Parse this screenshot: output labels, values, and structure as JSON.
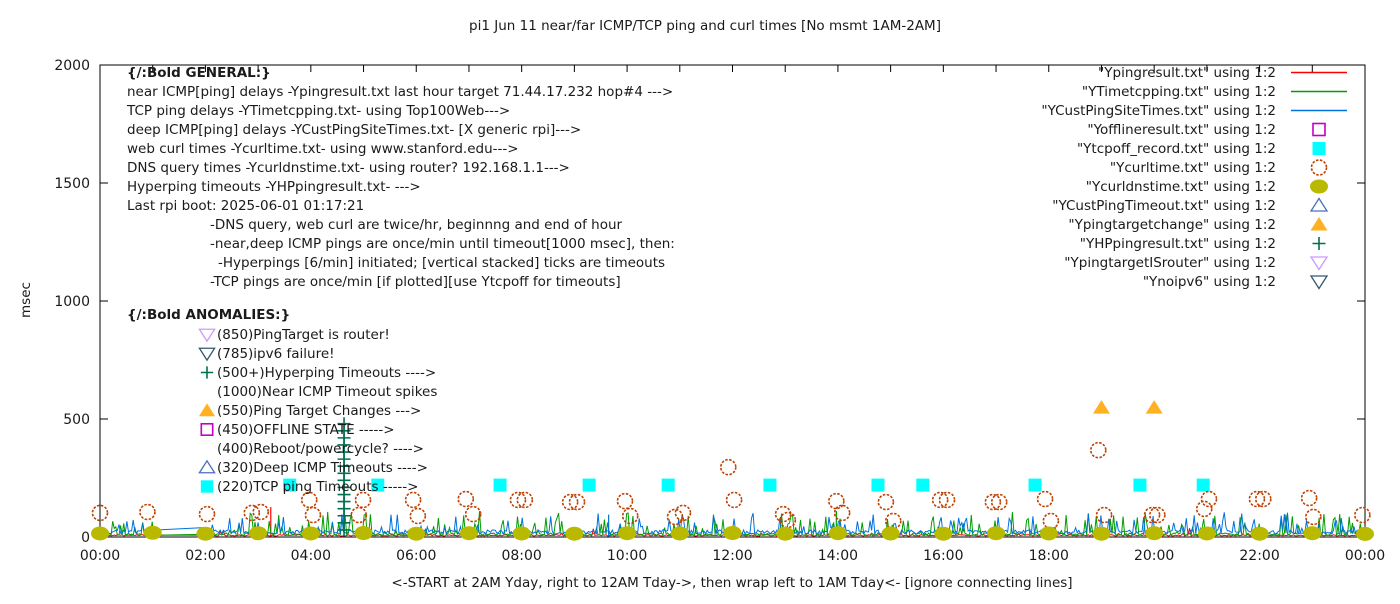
{
  "chart_data": {
    "type": "mixed",
    "title": "pi1 Jun 11  near/far ICMP/TCP ping and curl times [No msmt 1AM-2AM]",
    "xlabel": "<-START at 2AM Yday, right to 12AM Tday->, then wrap left to 1AM Tday<- [ignore connecting lines]",
    "ylabel": "msec",
    "xlim_hours": [
      0,
      24
    ],
    "ylim": [
      0,
      2000
    ],
    "y_ticks": [
      0,
      500,
      1000,
      1500,
      2000
    ],
    "x_ticks": [
      {
        "hour": 0,
        "label": "00:00"
      },
      {
        "hour": 2,
        "label": "02:00"
      },
      {
        "hour": 4,
        "label": "04:00"
      },
      {
        "hour": 6,
        "label": "06:00"
      },
      {
        "hour": 8,
        "label": "08:00"
      },
      {
        "hour": 10,
        "label": "10:00"
      },
      {
        "hour": 12,
        "label": "12:00"
      },
      {
        "hour": 14,
        "label": "14:00"
      },
      {
        "hour": 16,
        "label": "16:00"
      },
      {
        "hour": 18,
        "label": "18:00"
      },
      {
        "hour": 20,
        "label": "20:00"
      },
      {
        "hour": 22,
        "label": "22:00"
      },
      {
        "hour": 24,
        "label": "00:00"
      }
    ],
    "measurement_gap_hours": [
      1.0,
      2.0
    ],
    "grid": false,
    "legend_position": "top-right-inside",
    "series": [
      {
        "legend_label": "\"Ypingresult.txt\" using 1:2",
        "type": "noise-line",
        "color": "#ff0000",
        "baseline_msec": 4,
        "noise_amp_msec": 6,
        "spike_chance": 0.02,
        "spike_max_msec": 35,
        "seed": 11,
        "extra_spikes": [
          {
            "hour": 3.24,
            "msec": 127
          }
        ]
      },
      {
        "legend_label": "\"YTimetcpping.txt\" using 1:2",
        "type": "noise-line",
        "color": "#009e00",
        "baseline_msec": 7,
        "noise_amp_msec": 10,
        "spike_chance": 0.2,
        "spike_max_msec": 95,
        "seed": 22,
        "extra_spikes": [
          {
            "hour": 13.97,
            "msec": 110
          }
        ]
      },
      {
        "legend_label": "\"YCustPingSiteTimes.txt\" using 1:2",
        "type": "noise-line",
        "color": "#0072dd",
        "baseline_msec": 12,
        "noise_amp_msec": 18,
        "spike_chance": 0.2,
        "spike_max_msec": 75,
        "seed": 33,
        "extra_spikes": [
          {
            "hour": 9.65,
            "msec": 95
          }
        ]
      },
      {
        "legend_label": "\"Yofflineresult.txt\" using 1:2",
        "type": "scatter",
        "marker": "open-square",
        "color": "#c400c4",
        "points": []
      },
      {
        "legend_label": "\"Ytcpoff_record.txt\" using 1:2",
        "type": "scatter",
        "marker": "filled-square",
        "color": "#00ffff",
        "points": [
          [
            3.6,
            220
          ],
          [
            5.27,
            220
          ],
          [
            7.59,
            220
          ],
          [
            9.28,
            220
          ],
          [
            10.78,
            220
          ],
          [
            12.71,
            220
          ],
          [
            14.76,
            220
          ],
          [
            15.61,
            220
          ],
          [
            17.74,
            220
          ],
          [
            19.73,
            220
          ],
          [
            20.93,
            220
          ]
        ]
      },
      {
        "legend_label": "\"Ycurltime.txt\" using 1:2",
        "type": "scatter",
        "marker": "open-circle",
        "color": "#c04000",
        "points": [
          [
            0.0,
            102
          ],
          [
            0.9,
            106
          ],
          [
            2.03,
            97
          ],
          [
            2.88,
            102
          ],
          [
            3.05,
            106
          ],
          [
            3.97,
            157
          ],
          [
            4.04,
            93
          ],
          [
            4.91,
            93
          ],
          [
            4.99,
            157
          ],
          [
            5.94,
            157
          ],
          [
            6.03,
            89
          ],
          [
            6.94,
            161
          ],
          [
            7.08,
            97
          ],
          [
            7.93,
            157
          ],
          [
            8.06,
            157
          ],
          [
            8.92,
            148
          ],
          [
            9.05,
            148
          ],
          [
            9.96,
            152
          ],
          [
            10.06,
            89
          ],
          [
            10.91,
            85
          ],
          [
            11.06,
            102
          ],
          [
            11.92,
            296
          ],
          [
            12.03,
            157
          ],
          [
            12.96,
            97
          ],
          [
            13.05,
            72
          ],
          [
            13.97,
            152
          ],
          [
            14.08,
            102
          ],
          [
            14.91,
            148
          ],
          [
            15.05,
            68
          ],
          [
            15.94,
            157
          ],
          [
            16.07,
            157
          ],
          [
            16.94,
            148
          ],
          [
            17.06,
            148
          ],
          [
            17.93,
            161
          ],
          [
            18.04,
            68
          ],
          [
            18.94,
            368
          ],
          [
            19.05,
            93
          ],
          [
            19.96,
            93
          ],
          [
            20.06,
            93
          ],
          [
            20.95,
            119
          ],
          [
            21.04,
            161
          ],
          [
            21.95,
            161
          ],
          [
            22.07,
            161
          ],
          [
            22.94,
            165
          ],
          [
            23.02,
            85
          ],
          [
            23.95,
            93
          ]
        ]
      },
      {
        "legend_label": "\"Ycurldnstime.txt\" using 1:2",
        "type": "scatter",
        "marker": "filled-circle",
        "color": "#b9b900",
        "points": [
          [
            0,
            15
          ],
          [
            1,
            18
          ],
          [
            2,
            14
          ],
          [
            3,
            16
          ],
          [
            4,
            15
          ],
          [
            5,
            17
          ],
          [
            6,
            14
          ],
          [
            7,
            16
          ],
          [
            8,
            15
          ],
          [
            9,
            14
          ],
          [
            10,
            16
          ],
          [
            11,
            15
          ],
          [
            12,
            17
          ],
          [
            13,
            14
          ],
          [
            14,
            16
          ],
          [
            15,
            15
          ],
          [
            16,
            14
          ],
          [
            17,
            16
          ],
          [
            18,
            15
          ],
          [
            19,
            14
          ],
          [
            20,
            16
          ],
          [
            21,
            15
          ],
          [
            22,
            14
          ],
          [
            23,
            16
          ],
          [
            24,
            13
          ]
        ]
      },
      {
        "legend_label": "\"YCustPingTimeout.txt\" using 1:2",
        "type": "scatter",
        "marker": "open-triangle",
        "color": "#4a6fc0",
        "points": []
      },
      {
        "legend_label": "\"Ypingtargetchange\" using 1:2",
        "type": "scatter",
        "marker": "filled-triangle",
        "color": "#ffb121",
        "points": [
          [
            19.0,
            548
          ],
          [
            20.0,
            548
          ]
        ]
      },
      {
        "legend_label": "\"YHPpingresult.txt\" using 1:2",
        "type": "scatter",
        "marker": "plus",
        "color": "#007050",
        "points": [
          [
            4.63,
            30
          ],
          [
            4.63,
            60
          ],
          [
            4.63,
            90
          ],
          [
            4.63,
            120
          ],
          [
            4.63,
            150
          ],
          [
            4.63,
            180
          ],
          [
            4.63,
            210
          ],
          [
            4.63,
            240
          ],
          [
            4.63,
            270
          ],
          [
            4.63,
            300
          ],
          [
            4.63,
            330
          ],
          [
            4.63,
            360
          ],
          [
            4.63,
            390
          ],
          [
            4.63,
            420
          ],
          [
            4.63,
            450
          ],
          [
            4.63,
            480
          ]
        ]
      },
      {
        "legend_label": "\"YpingtargetISrouter\" using 1:2",
        "type": "scatter",
        "marker": "open-down-triangle",
        "color": "#cc99ff",
        "points": []
      },
      {
        "legend_label": "\"Ynoipv6\" using 1:2",
        "type": "scatter",
        "marker": "open-down-triangle",
        "color": "#31596f",
        "points": []
      }
    ],
    "annotations": {
      "general": {
        "title": "{/:Bold GENERAL:}",
        "lines": [
          {
            "t": "near ICMP[ping] delays -Ypingresult.txt last hour target 71.44.17.232 hop#4 --->",
            "i": 0
          },
          {
            "t": "TCP ping delays -YTimetcpping.txt- using Top100Web--->",
            "i": 0
          },
          {
            "t": "deep ICMP[ping] delays -YCustPingSiteTimes.txt- [X generic rpi]--->",
            "i": 0
          },
          {
            "t": "web curl times -Ycurltime.txt- using www.stanford.edu--->",
            "i": 0
          },
          {
            "t": "DNS query times -Ycurldnstime.txt- using router? 192.168.1.1--->",
            "i": 0
          },
          {
            "t": "Hyperping timeouts -YHPpingresult.txt- --->",
            "i": 0
          },
          {
            "t": "Last rpi boot: 2025-06-01 01:17:21",
            "i": 0
          },
          {
            "t": "-DNS query, web curl are twice/hr, beginnng and end of hour",
            "i": 1
          },
          {
            "t": "-near,deep ICMP pings are once/min until timeout[1000 msec], then:",
            "i": 1
          },
          {
            "t": "-Hyperpings [6/min] initiated; [vertical stacked] ticks are timeouts",
            "i": 2
          },
          {
            "t": "-TCP pings are once/min [if plotted][use Ytcpoff for timeouts]",
            "i": 1
          }
        ]
      },
      "anomalies": {
        "title": "{/:Bold ANOMALIES:}",
        "items": [
          {
            "marker": "open-down-triangle",
            "color": "#cc99ff",
            "text": "(850)PingTarget is router!"
          },
          {
            "marker": "open-down-triangle",
            "color": "#31596f",
            "text": "(785)ipv6 failure!"
          },
          {
            "marker": "plus",
            "color": "#007050",
            "text": "(500+)Hyperping Timeouts ---->"
          },
          {
            "marker": null,
            "color": null,
            "text": "(1000)Near ICMP Timeout spikes"
          },
          {
            "marker": "filled-triangle",
            "color": "#ffb121",
            "text": "(550)Ping Target Changes --->"
          },
          {
            "marker": "open-square",
            "color": "#c400c4",
            "text": "(450)OFFLINE STATE ----->"
          },
          {
            "marker": null,
            "color": null,
            "text": "(400)Reboot/powercycle? ---->"
          },
          {
            "marker": "open-triangle",
            "color": "#4a6fc0",
            "text": "(320)Deep ICMP Timeouts ---->"
          },
          {
            "marker": "filled-square",
            "color": "#00ffff",
            "text": "(220)TCP ping Timeouts ----->"
          }
        ]
      }
    }
  }
}
